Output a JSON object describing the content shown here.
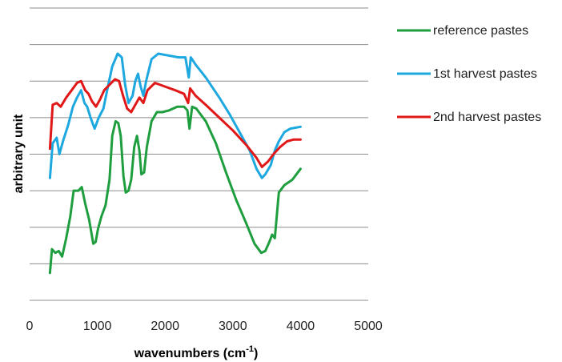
{
  "chart_data": {
    "type": "line",
    "xlabel": "wavenumbers (cm",
    "xlabel_sup": "-1",
    "xlabel_close": ")",
    "ylabel": "arbitrary unit",
    "xlim": [
      0,
      5000
    ],
    "xticks": [
      "0",
      "1000",
      "2000",
      "3000",
      "4000",
      "5000"
    ],
    "ylim": [
      0,
      8
    ],
    "y_tick_labels_shown": false,
    "grid": "horizontal",
    "legend_position": "right",
    "series": [
      {
        "name": "reference pastes",
        "color": "#1e9e3e",
        "points": [
          [
            300,
            0.75
          ],
          [
            330,
            1.4
          ],
          [
            380,
            1.3
          ],
          [
            430,
            1.35
          ],
          [
            480,
            1.2
          ],
          [
            540,
            1.7
          ],
          [
            600,
            2.3
          ],
          [
            650,
            3.0
          ],
          [
            720,
            3.0
          ],
          [
            770,
            3.1
          ],
          [
            820,
            2.65
          ],
          [
            880,
            2.2
          ],
          [
            940,
            1.55
          ],
          [
            975,
            1.6
          ],
          [
            1010,
            1.95
          ],
          [
            1060,
            2.3
          ],
          [
            1120,
            2.6
          ],
          [
            1180,
            3.3
          ],
          [
            1220,
            4.5
          ],
          [
            1270,
            4.9
          ],
          [
            1310,
            4.85
          ],
          [
            1345,
            4.5
          ],
          [
            1385,
            3.4
          ],
          [
            1420,
            2.95
          ],
          [
            1460,
            3.0
          ],
          [
            1500,
            3.3
          ],
          [
            1545,
            4.2
          ],
          [
            1585,
            4.5
          ],
          [
            1620,
            4.1
          ],
          [
            1650,
            3.45
          ],
          [
            1690,
            3.5
          ],
          [
            1730,
            4.2
          ],
          [
            1800,
            4.9
          ],
          [
            1880,
            5.15
          ],
          [
            1960,
            5.15
          ],
          [
            2060,
            5.2
          ],
          [
            2180,
            5.3
          ],
          [
            2280,
            5.3
          ],
          [
            2330,
            5.2
          ],
          [
            2360,
            4.7
          ],
          [
            2400,
            5.3
          ],
          [
            2460,
            5.25
          ],
          [
            2600,
            4.9
          ],
          [
            2750,
            4.3
          ],
          [
            2900,
            3.5
          ],
          [
            3050,
            2.75
          ],
          [
            3200,
            2.1
          ],
          [
            3320,
            1.55
          ],
          [
            3420,
            1.3
          ],
          [
            3480,
            1.35
          ],
          [
            3540,
            1.6
          ],
          [
            3580,
            1.8
          ],
          [
            3620,
            1.7
          ],
          [
            3680,
            2.95
          ],
          [
            3760,
            3.15
          ],
          [
            3880,
            3.3
          ],
          [
            4000,
            3.6
          ]
        ]
      },
      {
        "name": "1st harvest pastes",
        "color": "#1ea8e0",
        "points": [
          [
            300,
            3.35
          ],
          [
            340,
            4.3
          ],
          [
            400,
            4.45
          ],
          [
            440,
            4.0
          ],
          [
            500,
            4.4
          ],
          [
            570,
            4.8
          ],
          [
            640,
            5.3
          ],
          [
            700,
            5.55
          ],
          [
            760,
            5.75
          ],
          [
            810,
            5.4
          ],
          [
            850,
            5.3
          ],
          [
            900,
            5.0
          ],
          [
            960,
            4.7
          ],
          [
            1020,
            5.0
          ],
          [
            1090,
            5.25
          ],
          [
            1150,
            5.8
          ],
          [
            1220,
            6.4
          ],
          [
            1300,
            6.75
          ],
          [
            1360,
            6.65
          ],
          [
            1410,
            5.9
          ],
          [
            1460,
            5.4
          ],
          [
            1520,
            5.6
          ],
          [
            1560,
            6.0
          ],
          [
            1600,
            6.2
          ],
          [
            1640,
            5.85
          ],
          [
            1680,
            5.6
          ],
          [
            1720,
            6.0
          ],
          [
            1800,
            6.6
          ],
          [
            1900,
            6.75
          ],
          [
            2050,
            6.7
          ],
          [
            2200,
            6.65
          ],
          [
            2300,
            6.65
          ],
          [
            2350,
            6.1
          ],
          [
            2380,
            6.65
          ],
          [
            2450,
            6.45
          ],
          [
            2600,
            6.1
          ],
          [
            2800,
            5.55
          ],
          [
            2950,
            5.1
          ],
          [
            3100,
            4.6
          ],
          [
            3250,
            4.1
          ],
          [
            3350,
            3.6
          ],
          [
            3430,
            3.35
          ],
          [
            3480,
            3.45
          ],
          [
            3560,
            3.7
          ],
          [
            3620,
            4.1
          ],
          [
            3680,
            4.35
          ],
          [
            3760,
            4.6
          ],
          [
            3850,
            4.7
          ],
          [
            4000,
            4.75
          ]
        ]
      },
      {
        "name": "2nd harvest pastes",
        "color": "#e01818",
        "points": [
          [
            300,
            4.15
          ],
          [
            340,
            5.35
          ],
          [
            400,
            5.4
          ],
          [
            460,
            5.3
          ],
          [
            540,
            5.55
          ],
          [
            620,
            5.75
          ],
          [
            700,
            5.95
          ],
          [
            760,
            6.0
          ],
          [
            820,
            5.75
          ],
          [
            870,
            5.65
          ],
          [
            920,
            5.45
          ],
          [
            980,
            5.3
          ],
          [
            1040,
            5.5
          ],
          [
            1100,
            5.75
          ],
          [
            1180,
            5.9
          ],
          [
            1260,
            6.05
          ],
          [
            1320,
            6.0
          ],
          [
            1380,
            5.6
          ],
          [
            1440,
            5.25
          ],
          [
            1500,
            5.15
          ],
          [
            1560,
            5.35
          ],
          [
            1620,
            5.55
          ],
          [
            1680,
            5.4
          ],
          [
            1740,
            5.75
          ],
          [
            1850,
            5.95
          ],
          [
            2000,
            5.85
          ],
          [
            2150,
            5.75
          ],
          [
            2280,
            5.65
          ],
          [
            2340,
            5.4
          ],
          [
            2370,
            5.8
          ],
          [
            2450,
            5.6
          ],
          [
            2600,
            5.35
          ],
          [
            2800,
            5.0
          ],
          [
            3000,
            4.65
          ],
          [
            3200,
            4.25
          ],
          [
            3350,
            3.9
          ],
          [
            3430,
            3.65
          ],
          [
            3520,
            3.8
          ],
          [
            3600,
            4.0
          ],
          [
            3700,
            4.2
          ],
          [
            3800,
            4.35
          ],
          [
            3900,
            4.4
          ],
          [
            4000,
            4.4
          ]
        ]
      }
    ]
  }
}
